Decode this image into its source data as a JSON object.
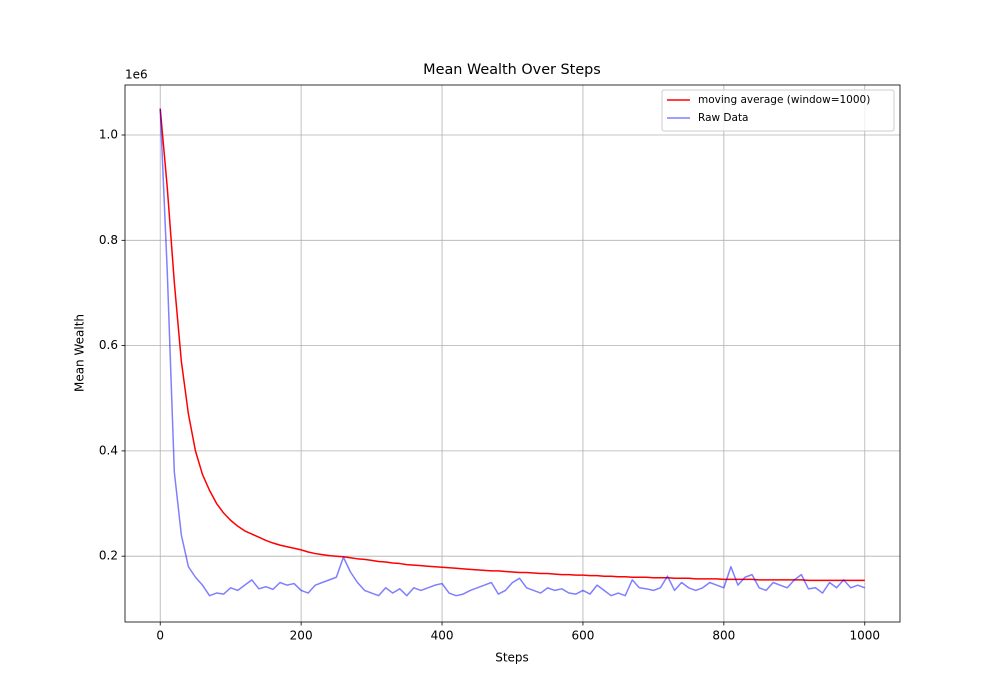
{
  "chart_data": {
    "type": "line",
    "title": "Mean Wealth Over Steps",
    "x_label": "Steps",
    "y_label": "Mean Wealth",
    "y_offset_label": "1e6",
    "x": [
      0,
      10,
      20,
      30,
      40,
      50,
      60,
      70,
      80,
      90,
      100,
      110,
      120,
      130,
      140,
      150,
      160,
      170,
      180,
      190,
      200,
      210,
      220,
      230,
      240,
      250,
      260,
      270,
      280,
      290,
      300,
      310,
      320,
      330,
      340,
      350,
      360,
      370,
      380,
      390,
      400,
      410,
      420,
      430,
      440,
      450,
      460,
      470,
      480,
      490,
      500,
      510,
      520,
      530,
      540,
      550,
      560,
      570,
      580,
      590,
      600,
      610,
      620,
      630,
      640,
      650,
      660,
      670,
      680,
      690,
      700,
      710,
      720,
      730,
      740,
      750,
      760,
      770,
      780,
      790,
      800,
      810,
      820,
      830,
      840,
      850,
      860,
      870,
      880,
      890,
      900,
      910,
      920,
      930,
      940,
      950,
      960,
      970,
      980,
      990,
      1000
    ],
    "series": [
      {
        "name": "moving average (window=1000)",
        "color": "#ff0000",
        "alpha": 1,
        "values": [
          1.05,
          0.9,
          0.72,
          0.57,
          0.47,
          0.4,
          0.355,
          0.325,
          0.3,
          0.282,
          0.268,
          0.257,
          0.248,
          0.242,
          0.236,
          0.23,
          0.225,
          0.221,
          0.218,
          0.215,
          0.212,
          0.208,
          0.205,
          0.203,
          0.201,
          0.2,
          0.199,
          0.197,
          0.195,
          0.194,
          0.192,
          0.19,
          0.189,
          0.187,
          0.186,
          0.184,
          0.183,
          0.182,
          0.181,
          0.18,
          0.179,
          0.178,
          0.177,
          0.176,
          0.175,
          0.174,
          0.173,
          0.172,
          0.172,
          0.171,
          0.17,
          0.169,
          0.169,
          0.168,
          0.167,
          0.167,
          0.166,
          0.165,
          0.165,
          0.164,
          0.164,
          0.163,
          0.163,
          0.162,
          0.162,
          0.161,
          0.161,
          0.16,
          0.16,
          0.16,
          0.159,
          0.159,
          0.159,
          0.158,
          0.158,
          0.158,
          0.157,
          0.157,
          0.157,
          0.157,
          0.156,
          0.156,
          0.156,
          0.156,
          0.156,
          0.155,
          0.155,
          0.155,
          0.155,
          0.155,
          0.155,
          0.155,
          0.154,
          0.154,
          0.154,
          0.154,
          0.154,
          0.154,
          0.154,
          0.154,
          0.154
        ]
      },
      {
        "name": "Raw Data",
        "color": "#0000ff",
        "alpha": 0.5,
        "values": [
          1.05,
          0.74,
          0.36,
          0.24,
          0.18,
          0.16,
          0.145,
          0.125,
          0.13,
          0.128,
          0.14,
          0.135,
          0.145,
          0.155,
          0.138,
          0.142,
          0.137,
          0.15,
          0.145,
          0.148,
          0.135,
          0.13,
          0.145,
          0.15,
          0.155,
          0.16,
          0.198,
          0.17,
          0.15,
          0.135,
          0.13,
          0.125,
          0.14,
          0.13,
          0.138,
          0.125,
          0.14,
          0.135,
          0.14,
          0.145,
          0.148,
          0.13,
          0.125,
          0.128,
          0.135,
          0.14,
          0.145,
          0.15,
          0.128,
          0.135,
          0.15,
          0.158,
          0.14,
          0.135,
          0.13,
          0.14,
          0.135,
          0.138,
          0.13,
          0.128,
          0.135,
          0.128,
          0.145,
          0.135,
          0.125,
          0.13,
          0.125,
          0.155,
          0.14,
          0.138,
          0.135,
          0.14,
          0.162,
          0.135,
          0.15,
          0.14,
          0.135,
          0.14,
          0.15,
          0.145,
          0.14,
          0.18,
          0.145,
          0.16,
          0.165,
          0.14,
          0.135,
          0.15,
          0.145,
          0.14,
          0.155,
          0.165,
          0.138,
          0.14,
          0.13,
          0.15,
          0.14,
          0.155,
          0.14,
          0.145,
          0.14
        ]
      }
    ],
    "xlim": [
      -50,
      1050
    ],
    "ylim": [
      0.075,
      1.095
    ],
    "xticks": [
      0,
      200,
      400,
      600,
      800,
      1000
    ],
    "yticks": [
      0.2,
      0.4,
      0.6,
      0.8,
      {
        "value": 1.0,
        "label": "1.0"
      }
    ],
    "grid": true,
    "legend": "upper right"
  }
}
